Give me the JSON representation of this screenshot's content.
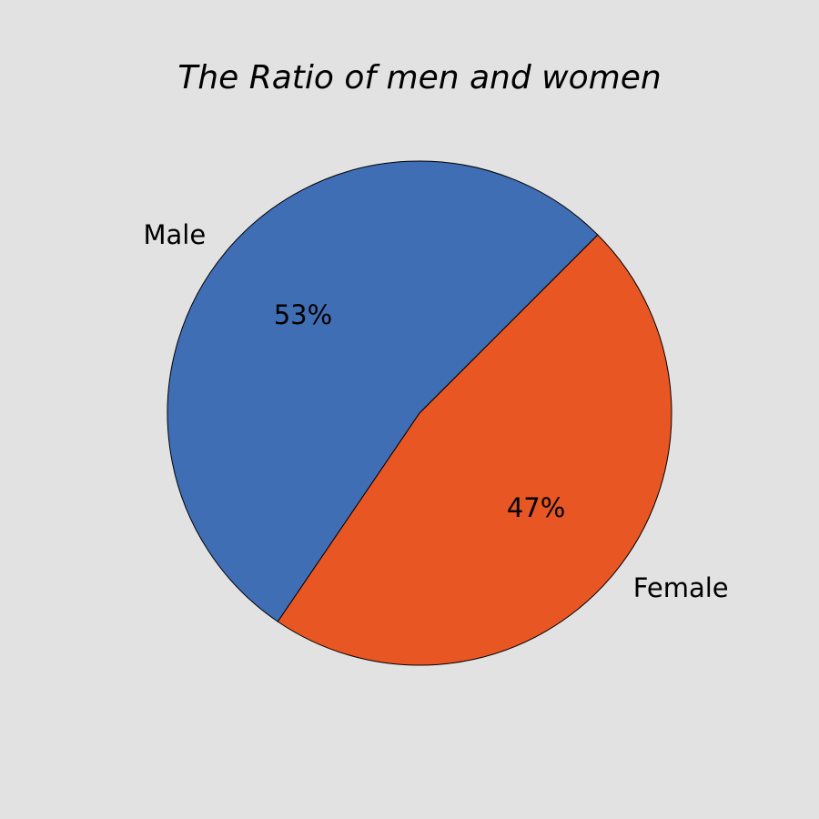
{
  "chart_data": {
    "type": "pie",
    "title": "The Ratio of men and women",
    "categories": [
      "Male",
      "Female"
    ],
    "values": [
      53,
      47
    ],
    "value_labels": [
      "53%",
      "47%"
    ],
    "colors": [
      "#406eb5",
      "#e85624"
    ]
  }
}
